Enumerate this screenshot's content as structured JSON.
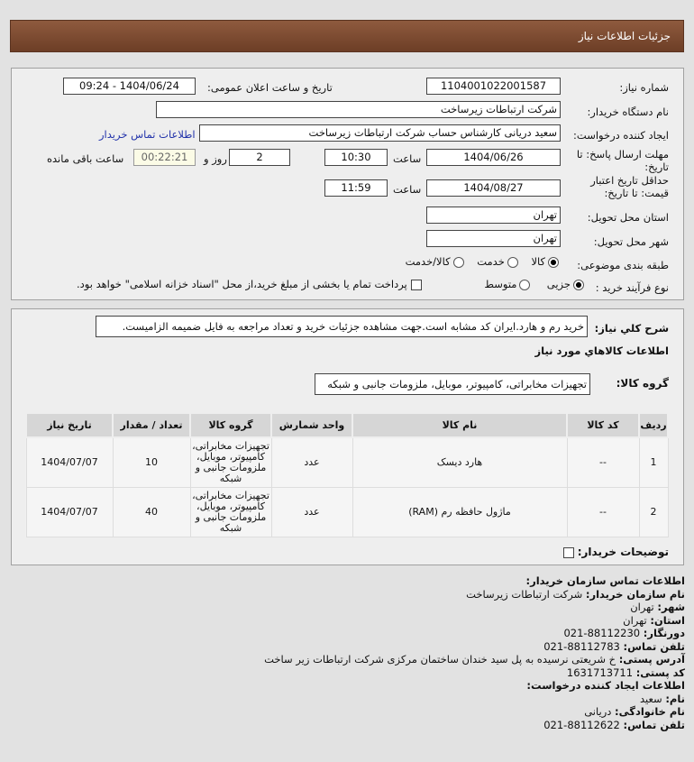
{
  "header": {
    "title": "جزئیات اطلاعات نیاز"
  },
  "form": {
    "need_number_label": "شماره نیاز:",
    "need_number": "1104001022001587",
    "announce_label": "تاریخ و ساعت اعلان عمومی:",
    "announce_value": "1404/06/24 - 09:24",
    "buyer_org_label": "نام دستگاه خریدار:",
    "buyer_org": "شرکت ارتباطات زیرساخت",
    "creator_label": "ایجاد کننده درخواست:",
    "creator": "سعید دریانی کارشناس حساب  شرکت ارتباطات زیرساخت",
    "contact_link": "اطلاعات تماس خریدار",
    "deadline_label": "مهلت ارسال پاسخ: تا تاریخ:",
    "deadline_date": "1404/06/26",
    "time_label": "ساعت",
    "deadline_time": "10:30",
    "days": "2",
    "days_label": "روز و",
    "remaining": "00:22:21",
    "remaining_label": "ساعت باقی مانده",
    "validity_label": "حداقل تاریخ اعتبار قیمت: تا تاریخ:",
    "validity_date": "1404/08/27",
    "validity_time": "11:59",
    "province_label": "استان محل تحویل:",
    "province": "تهران",
    "city_label": "شهر محل تحویل:",
    "city": "تهران",
    "category_label": "طبقه بندی موضوعی:",
    "category_options": [
      "کالا",
      "خدمت",
      "کالا/خدمت"
    ],
    "process_label": "نوع فرآیند خرید :",
    "process_options": [
      "جزیی",
      "متوسط"
    ],
    "payment_note": "پرداخت تمام یا بخشی از مبلغ خرید،از محل \"اسناد خزانه اسلامی\" خواهد بود."
  },
  "details": {
    "desc_label": "شرح کلي نياز:",
    "desc": "خرید رم و هارد.ایران کد مشابه است.جهت مشاهده جزئیات خرید و تعداد مراجعه به فایل ضمیمه الزامیست.",
    "goods_title": "اطلاعات کالاهاي مورد نياز",
    "group_label": "گروه کالا:",
    "group": "تجهیزات مخابراتی، کامپیوتر، موبایل، ملزومات جانبی و شبکه",
    "columns": [
      "ردیف",
      "کد کالا",
      "نام کالا",
      "واحد شمارش",
      "گروه کالا",
      "تعداد / مقدار",
      "تاریخ نیاز"
    ],
    "rows": [
      {
        "idx": "1",
        "code": "--",
        "name": "هارد دیسک",
        "unit": "عدد",
        "group": "تجهیزات مخابراتی، کامپیوتر، موبایل، ملزومات جانبی و شبکه",
        "qty": "10",
        "date": "1404/07/07"
      },
      {
        "idx": "2",
        "code": "--",
        "name": "ماژول حافظه رم (RAM)",
        "unit": "عدد",
        "group": "تجهیزات مخابراتی، کامپیوتر، موبایل، ملزومات جانبی و شبکه",
        "qty": "40",
        "date": "1404/07/07"
      }
    ],
    "buyer_notes_label": "توضیحات خریدار:"
  },
  "contact": {
    "title": "اطلاعات تماس سازمان خریدار:",
    "org_label": "نام سازمان خریدار:",
    "org": "شرکت ارتباطات زیرساخت",
    "city_label": "شهر:",
    "city": "تهران",
    "province_label": "استان:",
    "province": "تهران",
    "fax_label": "دورنگار:",
    "fax": "88112230-021",
    "phone_label": "تلفن تماس:",
    "phone": "88112783-021",
    "address_label": "آدرس پستی:",
    "address": "خ شریعتی نرسیده به پل سید خندان ساختمان مرکزی شرکت ارتباطات زیر ساخت",
    "postal_label": "کد پستی:",
    "postal": "1631713711",
    "creator_title": "اطلاعات ایجاد کننده درخواست:",
    "name_label": "نام:",
    "name": "سعید",
    "family_label": "نام خانوادگی:",
    "family": "دریانی",
    "cphone_label": "تلفن تماس:",
    "cphone": "88112622-021"
  }
}
